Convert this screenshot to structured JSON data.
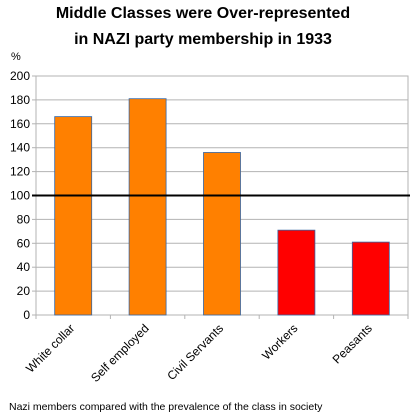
{
  "chart_data": {
    "type": "bar",
    "title_lines": [
      "Middle Classes were Over-represented",
      "in NAZI party membership in 1933"
    ],
    "ylabel": "%",
    "categories": [
      "White collar",
      "Self employed",
      "Civil Servants",
      "Workers",
      "Peasants"
    ],
    "values": [
      166,
      181,
      136,
      71,
      61
    ],
    "colors": [
      "#ff8000",
      "#ff8000",
      "#ff8000",
      "#ff0000",
      "#ff0000"
    ],
    "ylim": [
      0,
      200
    ],
    "yticks": [
      "0",
      "20",
      "40",
      "60",
      "80",
      "100",
      "120",
      "140",
      "160",
      "180",
      "200"
    ],
    "reference_line": 100,
    "grid": true,
    "legend": "none",
    "footnote": "Nazi members compared with the prevalence of the class in society"
  }
}
